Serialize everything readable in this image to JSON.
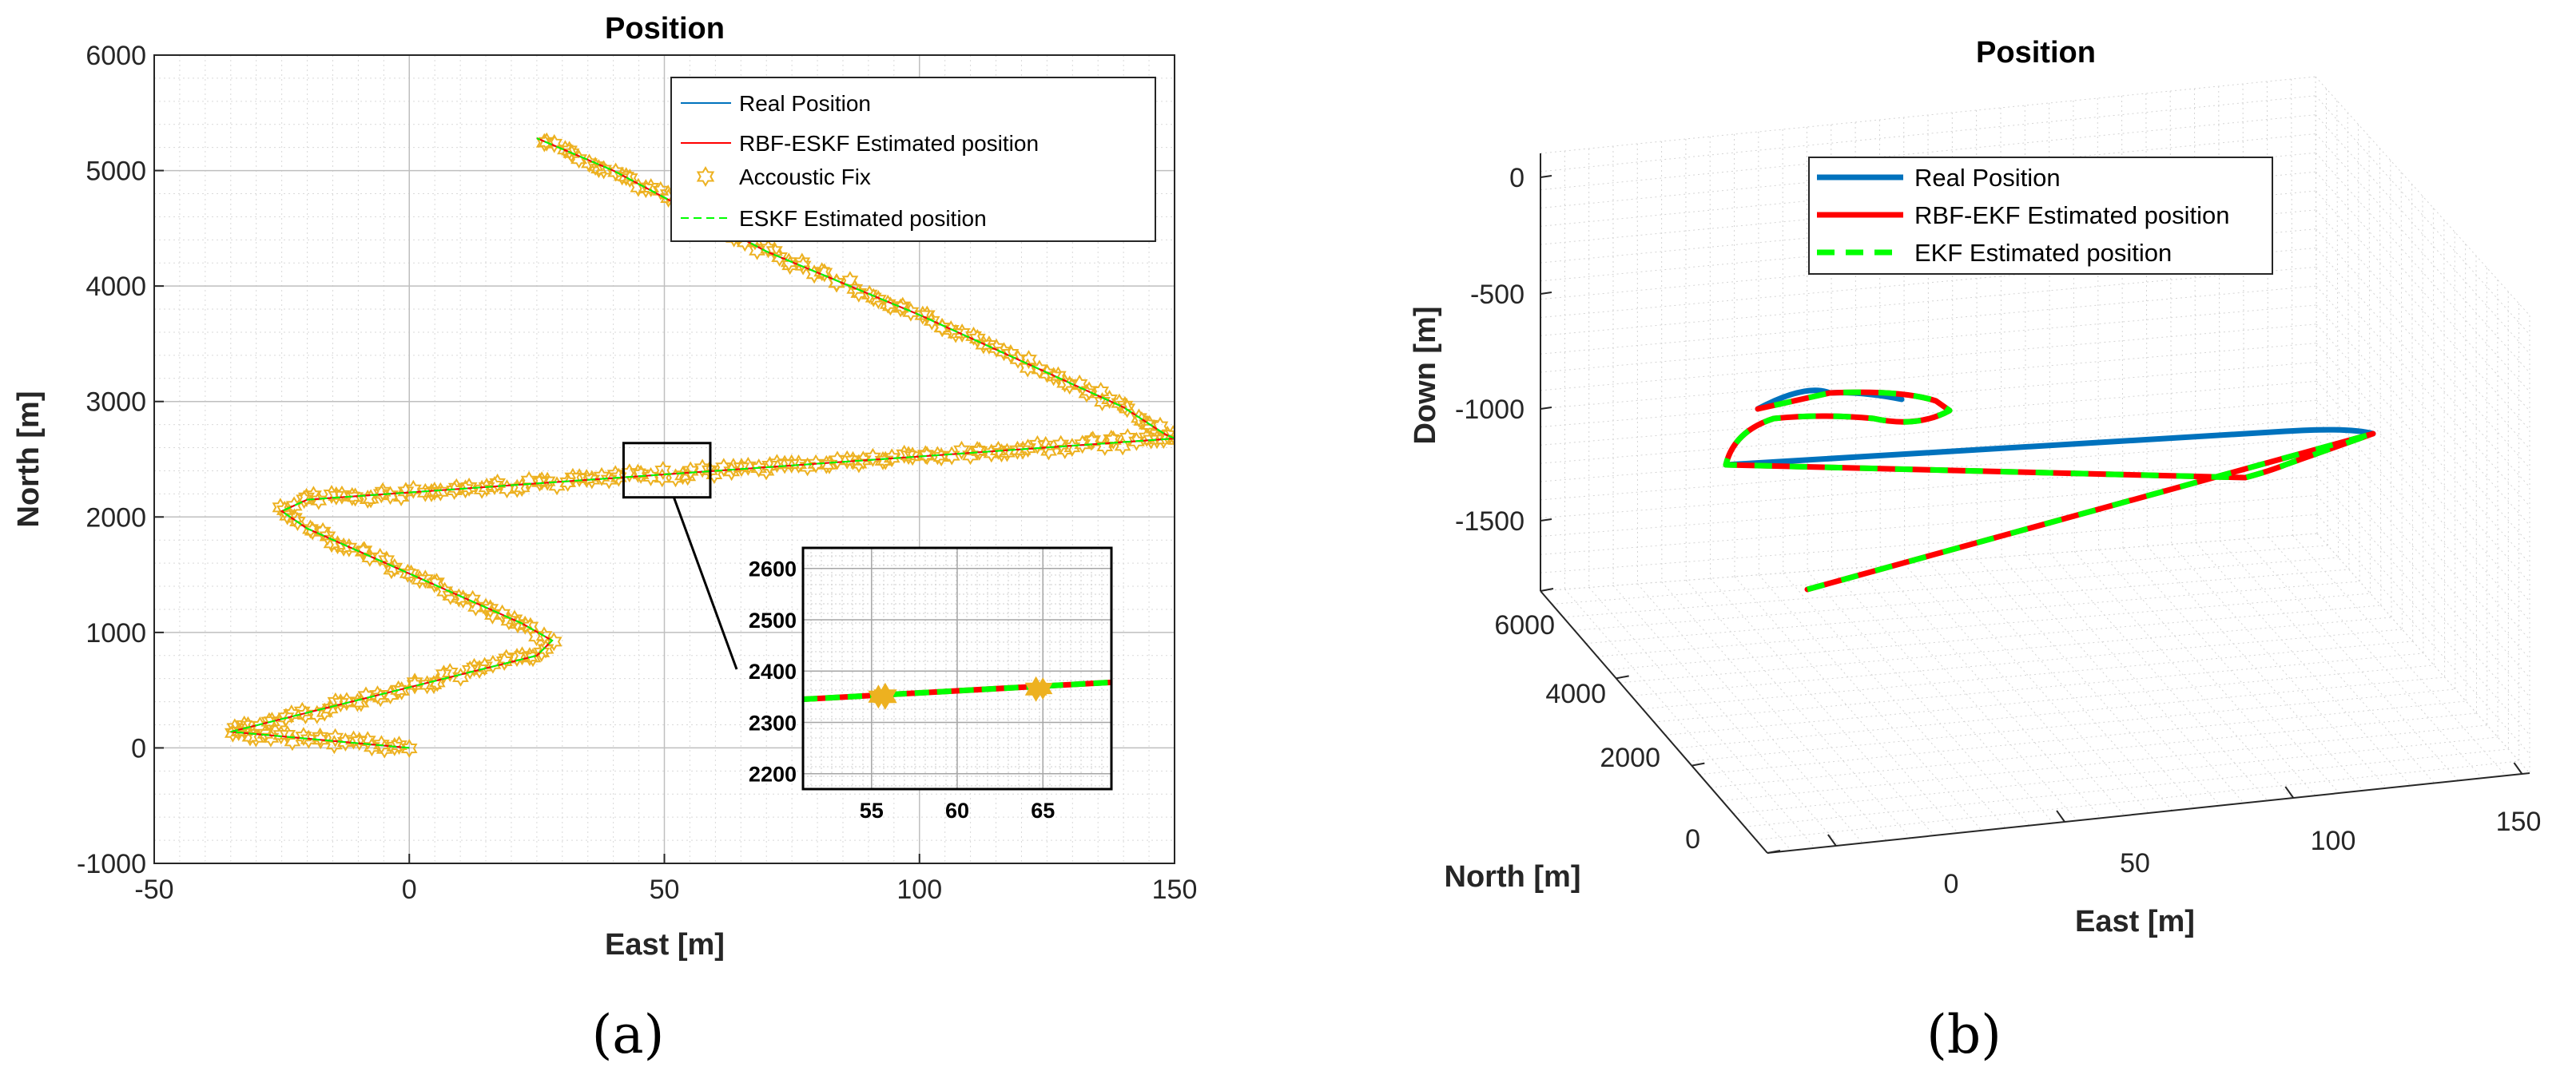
{
  "chart_data": [
    {
      "panel": "a",
      "type": "line",
      "title": "Position",
      "xlabel": "East [m]",
      "ylabel": "North [m]",
      "xlim": [
        -50,
        150
      ],
      "ylim": [
        -1000,
        6000
      ],
      "xticks": [
        "-50",
        "0",
        "50",
        "100",
        "150"
      ],
      "yticks": [
        "-1000",
        "0",
        "1000",
        "2000",
        "3000",
        "4000",
        "5000",
        "6000"
      ],
      "grid": true,
      "minor_grid": true,
      "legend_position": "top-right",
      "series": [
        {
          "name": "Real Position",
          "color": "#0072bd",
          "style": "solid"
        },
        {
          "name": "RBF-ESKF Estimated position",
          "color": "#ff0000",
          "style": "solid"
        },
        {
          "name": "Accoustic Fix",
          "color": "#edb120",
          "style": "hexagram-markers"
        },
        {
          "name": "ESKF Estimated position",
          "color": "#00ff00",
          "style": "dashed"
        }
      ],
      "trajectory": {
        "x": [
          0,
          -35,
          25,
          28,
          22,
          -20,
          -25,
          -20,
          150,
          148,
          140,
          100,
          70,
          40,
          25
        ],
        "y": [
          0,
          140,
          800,
          930,
          1080,
          1900,
          2050,
          2150,
          2680,
          2720,
          2950,
          3750,
          4300,
          5000,
          5280
        ]
      },
      "inset": {
        "zoom_box": {
          "x": [
            42,
            59
          ],
          "y": [
            2170,
            2640
          ]
        },
        "xticks": [
          "55",
          "60",
          "65"
        ],
        "yticks": [
          "2200",
          "2300",
          "2400",
          "2500",
          "2600"
        ],
        "xlim": [
          51,
          69
        ],
        "ylim": [
          2170,
          2640
        ]
      },
      "caption": "(a)"
    },
    {
      "panel": "b",
      "type": "line",
      "projection": "3d",
      "title": "Position",
      "xlabel": "East [m]",
      "ylabel": "North [m]",
      "zlabel": "Down [m]",
      "xticks": [
        "0",
        "50",
        "100",
        "150"
      ],
      "yticks": [
        "0",
        "2000",
        "4000",
        "6000"
      ],
      "zticks": [
        "0",
        "-500",
        "-1000",
        "-1500"
      ],
      "grid": true,
      "legend_position": "top-center",
      "series": [
        {
          "name": "Real Position",
          "color": "#0072bd",
          "style": "solid"
        },
        {
          "name": "RBF-EKF Estimated position",
          "color": "#ff0000",
          "style": "solid"
        },
        {
          "name": "EKF Estimated position",
          "color": "#00ff00",
          "style": "dashed"
        }
      ],
      "caption": "(b)"
    }
  ]
}
